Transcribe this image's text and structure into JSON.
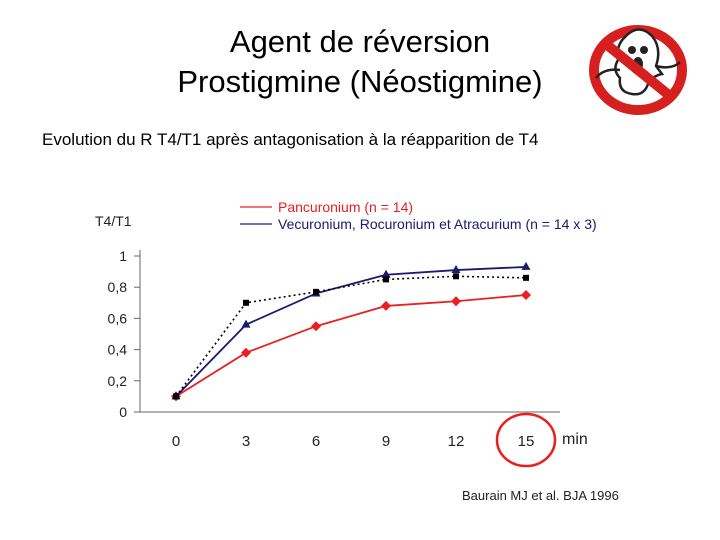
{
  "slide": {
    "title_line1": "Agent de réversion",
    "title_line2": "Prostigmine (Néostigmine)",
    "subtitle": "Evolution du R T4/T1 après antagonisation à la réapparition de T4",
    "reference": "Baurain MJ et al. BJA 1996",
    "logo_icon": "no-ghost-icon"
  },
  "chart_data": {
    "type": "line",
    "ylabel": "T4/T1",
    "xunit": "min",
    "x": [
      0,
      3,
      6,
      9,
      12,
      15
    ],
    "xtick_labels": [
      "0",
      "3",
      "6",
      "9",
      "12",
      "15"
    ],
    "ytick_labels": [
      "0",
      "0,2",
      "0,4",
      "0,6",
      "0,8",
      "1"
    ],
    "ylim": [
      0,
      1
    ],
    "legend_position": "top-right",
    "series": [
      {
        "name": "Pancuronium (n = 14)",
        "color": "#e82020",
        "marker": "diamond",
        "style": "solid",
        "values": [
          0.1,
          0.38,
          0.55,
          0.68,
          0.71,
          0.75
        ]
      },
      {
        "name": "Vecuronium, Rocuronium et Atracurium (n = 14 x 3)",
        "color": "#1a1a6e",
        "marker": "triangle",
        "style": "solid",
        "values": [
          0.1,
          0.56,
          0.76,
          0.88,
          0.91,
          0.93
        ]
      },
      {
        "name": "",
        "color": "#000000",
        "marker": "square",
        "style": "dotted",
        "legend": false,
        "values": [
          0.1,
          0.7,
          0.77,
          0.85,
          0.87,
          0.86
        ]
      }
    ],
    "highlight": {
      "x_label": "15",
      "color": "#e82020",
      "shape": "circle"
    }
  }
}
